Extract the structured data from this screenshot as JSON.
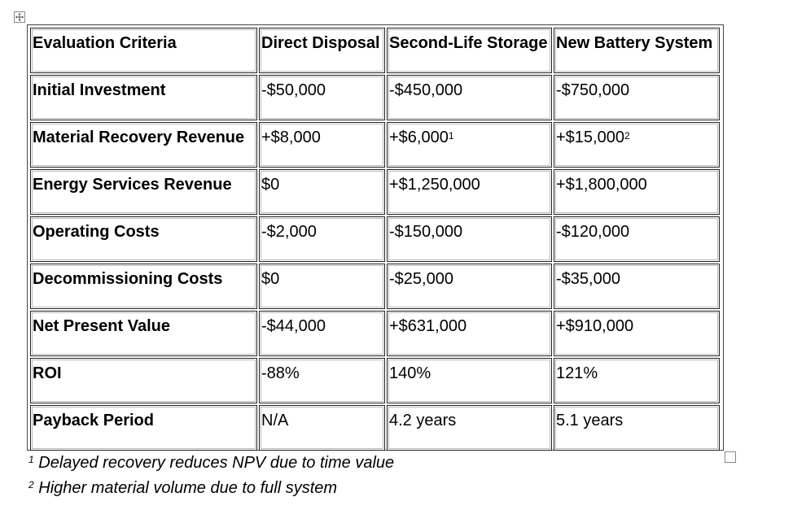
{
  "table": {
    "headers": [
      "Evaluation Criteria",
      "Direct Disposal",
      "Second-Life Storage",
      "New Battery System"
    ],
    "rows": [
      {
        "label": "Initial Investment",
        "cells": [
          {
            "v": "-$50,000"
          },
          {
            "v": "-$450,000"
          },
          {
            "v": "-$750,000"
          }
        ]
      },
      {
        "label": "Material Recovery Revenue",
        "cells": [
          {
            "v": "+$8,000"
          },
          {
            "v": "+$6,000",
            "sup": "1"
          },
          {
            "v": "+$15,000",
            "sup": "2"
          }
        ]
      },
      {
        "label": "Energy Services Revenue",
        "cells": [
          {
            "v": "$0"
          },
          {
            "v": "+$1,250,000"
          },
          {
            "v": "+$1,800,000"
          }
        ]
      },
      {
        "label": "Operating Costs",
        "cells": [
          {
            "v": "-$2,000"
          },
          {
            "v": "-$150,000"
          },
          {
            "v": "-$120,000"
          }
        ]
      },
      {
        "label": "Decommissioning Costs",
        "cells": [
          {
            "v": "$0"
          },
          {
            "v": "-$25,000"
          },
          {
            "v": "-$35,000"
          }
        ]
      },
      {
        "label": "Net Present Value",
        "cells": [
          {
            "v": "-$44,000"
          },
          {
            "v": "+$631,000"
          },
          {
            "v": "+$910,000"
          }
        ]
      },
      {
        "label": "ROI",
        "cells": [
          {
            "v": "-88%"
          },
          {
            "v": "140%"
          },
          {
            "v": "121%"
          }
        ]
      },
      {
        "label": "Payback Period",
        "cells": [
          {
            "v": "N/A"
          },
          {
            "v": "4.2 years"
          },
          {
            "v": "5.1 years"
          }
        ]
      }
    ]
  },
  "footnotes": [
    {
      "mark": "1",
      "text": "Delayed recovery reduces NPV due to time value"
    },
    {
      "mark": "2",
      "text": "Higher material volume due to full system"
    }
  ],
  "icons": {
    "move_handle": "move-cross-icon",
    "resize_handle": "resize-square-icon"
  }
}
